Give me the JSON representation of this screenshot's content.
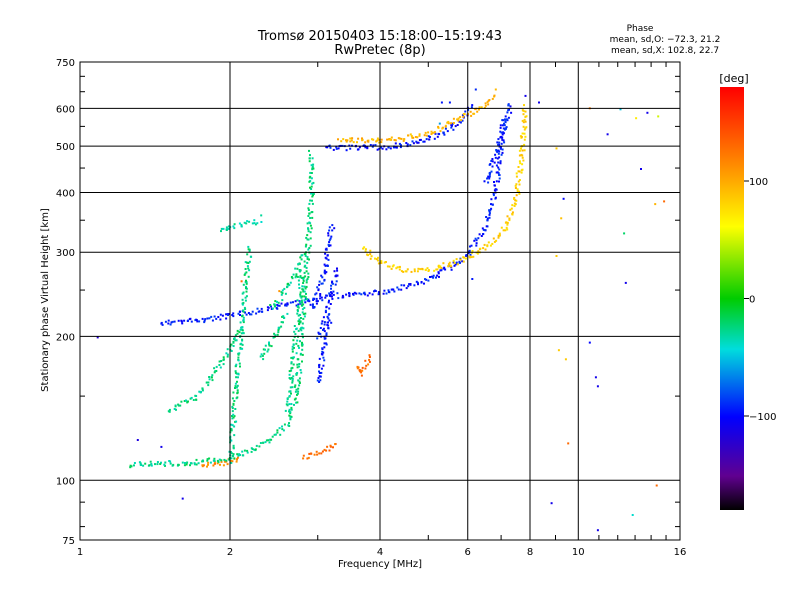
{
  "chart_data": {
    "type": "scatter",
    "title": "Tromsø 20150403 15:18:00–15:19:43",
    "subtitle": "RwPretec (8p)",
    "xlabel": "Frequency [MHz]",
    "ylabel": "Stationary phase Virtual Height [km]",
    "x_scale": "log2",
    "y_scale": "log",
    "xlim": [
      1,
      16
    ],
    "ylim": [
      75,
      750
    ],
    "x_ticks": [
      1,
      2,
      4,
      6,
      8,
      10,
      16
    ],
    "x_tick_labels": [
      "1",
      "2",
      "4",
      "6",
      "8",
      "10",
      "16"
    ],
    "y_ticks": [
      75,
      100,
      200,
      300,
      400,
      500,
      600,
      750
    ],
    "y_tick_labels": [
      "75",
      "100",
      "200",
      "300",
      "400",
      "500",
      "600",
      "750"
    ],
    "grid": true,
    "stats": {
      "heading": "Phase",
      "line1": "mean, sd,O: −72.3, 21.2",
      "line2": "mean, sd,X: 102.8, 22.7"
    },
    "colorbar": {
      "label": "[deg]",
      "range": [
        -180,
        180
      ],
      "ticks": [
        100,
        0,
        -100
      ],
      "tick_labels": [
        "100",
        "0",
        "−100"
      ]
    },
    "traces": [
      {
        "phase": -95,
        "points": [
          [
            1.45,
            214
          ],
          [
            1.6,
            216
          ],
          [
            1.8,
            218
          ],
          [
            2.0,
            222
          ],
          [
            2.2,
            226
          ],
          [
            2.5,
            232
          ],
          [
            2.8,
            238
          ],
          [
            3.2,
            244
          ],
          [
            3.6,
            246
          ],
          [
            4.0,
            248
          ],
          [
            4.5,
            255
          ],
          [
            5.0,
            265
          ],
          [
            5.5,
            280
          ],
          [
            6.0,
            300
          ],
          [
            6.4,
            330
          ],
          [
            6.7,
            380
          ],
          [
            6.9,
            450
          ],
          [
            7.0,
            520
          ],
          [
            7.05,
            580
          ]
        ]
      },
      {
        "phase": -95,
        "points": [
          [
            2.9,
            228
          ],
          [
            3.0,
            250
          ],
          [
            3.1,
            280
          ],
          [
            3.15,
            320
          ],
          [
            3.2,
            345
          ]
        ]
      },
      {
        "phase": -95,
        "points": [
          [
            3.0,
            200
          ],
          [
            3.1,
            220
          ],
          [
            3.2,
            250
          ],
          [
            3.25,
            280
          ]
        ]
      },
      {
        "phase": -95,
        "points": [
          [
            3.0,
            160
          ],
          [
            3.05,
            180
          ],
          [
            3.1,
            200
          ],
          [
            3.15,
            220
          ]
        ]
      },
      {
        "phase": -98,
        "points": [
          [
            3.1,
            500
          ],
          [
            3.5,
            498
          ],
          [
            4.0,
            500
          ],
          [
            4.5,
            505
          ],
          [
            5.0,
            520
          ],
          [
            5.5,
            545
          ],
          [
            5.9,
            580
          ],
          [
            6.1,
            610
          ]
        ]
      },
      {
        "phase": -95,
        "points": [
          [
            6.5,
            420
          ],
          [
            6.8,
            480
          ],
          [
            7.0,
            530
          ],
          [
            7.2,
            580
          ],
          [
            7.3,
            620
          ]
        ]
      },
      {
        "phase": 82,
        "points": [
          [
            3.7,
            310
          ],
          [
            3.9,
            290
          ],
          [
            4.2,
            280
          ],
          [
            4.6,
            276
          ],
          [
            5.0,
            278
          ],
          [
            5.5,
            284
          ],
          [
            6.0,
            295
          ],
          [
            6.5,
            310
          ],
          [
            7.0,
            330
          ],
          [
            7.3,
            360
          ],
          [
            7.5,
            400
          ],
          [
            7.6,
            450
          ],
          [
            7.7,
            500
          ],
          [
            7.75,
            560
          ],
          [
            7.8,
            610
          ]
        ]
      },
      {
        "phase": 95,
        "points": [
          [
            3.3,
            520
          ],
          [
            3.8,
            515
          ],
          [
            4.3,
            518
          ],
          [
            4.8,
            530
          ],
          [
            5.3,
            548
          ],
          [
            5.7,
            570
          ],
          [
            6.1,
            590
          ],
          [
            6.5,
            615
          ],
          [
            6.8,
            640
          ]
        ]
      },
      {
        "phase": 125,
        "points": [
          [
            3.6,
            175
          ],
          [
            3.65,
            168
          ],
          [
            3.75,
            178
          ],
          [
            3.8,
            185
          ]
        ]
      },
      {
        "phase": 130,
        "points": [
          [
            2.8,
            112
          ],
          [
            2.95,
            114
          ],
          [
            3.1,
            116
          ],
          [
            3.25,
            120
          ]
        ]
      },
      {
        "phase": 115,
        "points": [
          [
            1.75,
            108
          ],
          [
            1.9,
            109
          ],
          [
            2.1,
            111
          ]
        ]
      },
      {
        "phase": -25,
        "points": [
          [
            1.25,
            108
          ],
          [
            1.4,
            109
          ],
          [
            1.6,
            109
          ],
          [
            1.8,
            110
          ],
          [
            2.0,
            112
          ],
          [
            2.2,
            116
          ],
          [
            2.4,
            122
          ],
          [
            2.6,
            132
          ],
          [
            2.7,
            150
          ],
          [
            2.75,
            180
          ],
          [
            2.8,
            230
          ],
          [
            2.85,
            300
          ],
          [
            2.9,
            400
          ],
          [
            2.9,
            490
          ]
        ]
      },
      {
        "phase": -25,
        "points": [
          [
            2.0,
            110
          ],
          [
            2.03,
            140
          ],
          [
            2.06,
            170
          ],
          [
            2.1,
            200
          ],
          [
            2.13,
            240
          ],
          [
            2.16,
            280
          ],
          [
            2.18,
            310
          ]
        ]
      },
      {
        "phase": -25,
        "points": [
          [
            1.5,
            140
          ],
          [
            1.6,
            145
          ],
          [
            1.7,
            150
          ],
          [
            1.8,
            160
          ],
          [
            1.9,
            175
          ],
          [
            2.0,
            190
          ],
          [
            2.1,
            210
          ]
        ]
      },
      {
        "phase": -25,
        "points": [
          [
            2.6,
            140
          ],
          [
            2.65,
            170
          ],
          [
            2.7,
            200
          ],
          [
            2.75,
            240
          ],
          [
            2.78,
            280
          ]
        ]
      },
      {
        "phase": -25,
        "points": [
          [
            2.3,
            180
          ],
          [
            2.4,
            195
          ],
          [
            2.5,
            210
          ],
          [
            2.6,
            225
          ]
        ]
      },
      {
        "phase": -30,
        "points": [
          [
            1.9,
            335
          ],
          [
            2.1,
            345
          ],
          [
            2.3,
            350
          ]
        ]
      },
      {
        "phase": -25,
        "points": [
          [
            2.4,
            230
          ],
          [
            2.5,
            240
          ],
          [
            2.6,
            255
          ],
          [
            2.7,
            270
          ],
          [
            2.8,
            300
          ]
        ]
      }
    ],
    "scatter_points": [
      [
        1.08,
        200,
        -120
      ],
      [
        1.6,
        92,
        -110
      ],
      [
        1.3,
        122,
        -115
      ],
      [
        1.45,
        118,
        -110
      ],
      [
        2.1,
        262,
        130
      ],
      [
        2.5,
        250,
        110
      ],
      [
        2.3,
        360,
        -30
      ],
      [
        5.25,
        560,
        -60
      ],
      [
        5.5,
        620,
        -95
      ],
      [
        6.8,
        660,
        92
      ],
      [
        7.8,
        640,
        -110
      ],
      [
        8.3,
        620,
        -110
      ],
      [
        5.3,
        620,
        -95
      ],
      [
        6.2,
        660,
        -90
      ],
      [
        9.0,
        497,
        85
      ],
      [
        9.2,
        355,
        90
      ],
      [
        9.0,
        296,
        85
      ],
      [
        9.3,
        390,
        -100
      ],
      [
        9.1,
        188,
        85
      ],
      [
        9.4,
        180,
        85
      ],
      [
        9.5,
        120,
        130
      ],
      [
        10.5,
        195,
        -100
      ],
      [
        10.8,
        165,
        -110
      ],
      [
        10.9,
        158,
        -110
      ],
      [
        10.5,
        603,
        120
      ],
      [
        11.4,
        532,
        -110
      ],
      [
        12.1,
        600,
        -50
      ],
      [
        13.7,
        590,
        -110
      ],
      [
        13.0,
        575,
        70
      ],
      [
        13.3,
        450,
        -110
      ],
      [
        12.3,
        330,
        -20
      ],
      [
        14.2,
        380,
        95
      ],
      [
        14.3,
        98,
        130
      ],
      [
        12.4,
        260,
        -110
      ],
      [
        10.9,
        79,
        -110
      ],
      [
        8.8,
        90,
        -110
      ],
      [
        12.8,
        85,
        -40
      ],
      [
        14.4,
        580,
        50
      ],
      [
        14.8,
        385,
        130
      ],
      [
        6.1,
        265,
        -95
      ]
    ]
  }
}
